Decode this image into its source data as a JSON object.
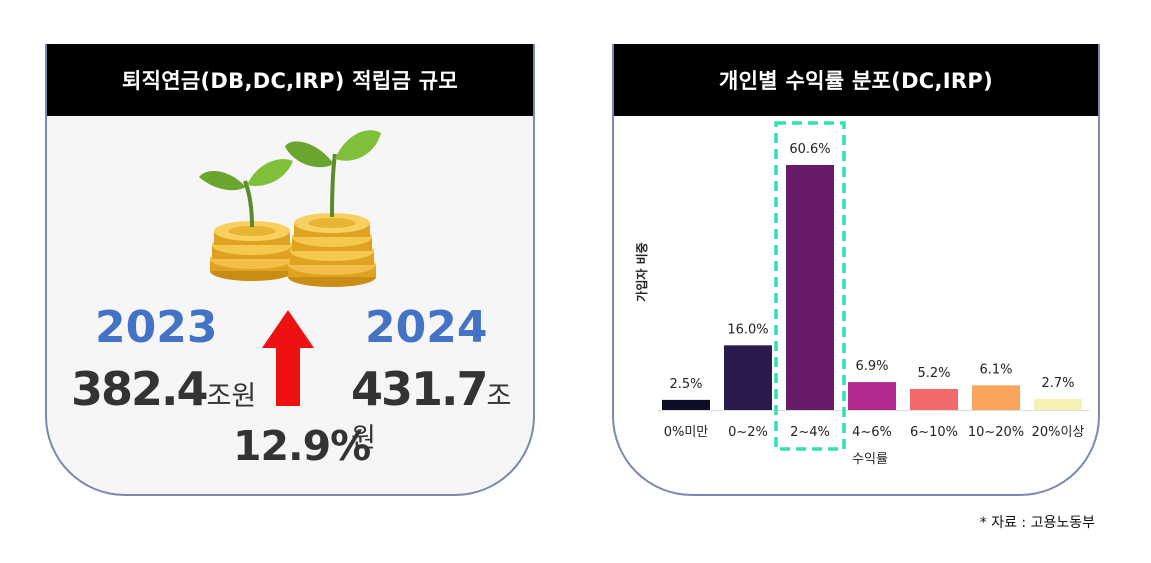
{
  "left_panel": {
    "title": "퇴직연금(DB,DC,IRP) 적립금 규모",
    "year_2023": "2023",
    "amount_2023": "382.4",
    "unit_2023": "조원",
    "year_2024": "2024",
    "amount_2024": "431.7",
    "unit_2024": "조원",
    "growth": "12.9%",
    "arrow_icon": "up-arrow-icon",
    "arrow_color": "#ee1111",
    "year_color": "#4472c4"
  },
  "right_panel": {
    "title": "개인별 수익률 분포(DC,IRP)"
  },
  "source_note": "* 자료 : 고용노동부",
  "chart_data": {
    "type": "bar",
    "title": "개인별 수익률 분포(DC,IRP)",
    "xlabel": "수익률",
    "ylabel": "가입자 비중",
    "categories": [
      "0%미만",
      "0~2%",
      "2~4%",
      "4~6%",
      "6~10%",
      "10~20%",
      "20%이상"
    ],
    "values": [
      2.5,
      16.0,
      60.6,
      6.9,
      5.2,
      6.1,
      2.7
    ],
    "value_labels": [
      "2.5%",
      "16.0%",
      "60.6%",
      "6.9%",
      "5.2%",
      "6.1%",
      "2.7%"
    ],
    "colors": [
      "#0d0d26",
      "#2b1a4e",
      "#671a67",
      "#b02a90",
      "#f06a6a",
      "#fba45e",
      "#f7f0b4"
    ],
    "highlight_category": "2~4%",
    "highlight_color": "#2fe2b4",
    "ylim": [
      0,
      60.6
    ],
    "grid": false,
    "legend": "none"
  }
}
